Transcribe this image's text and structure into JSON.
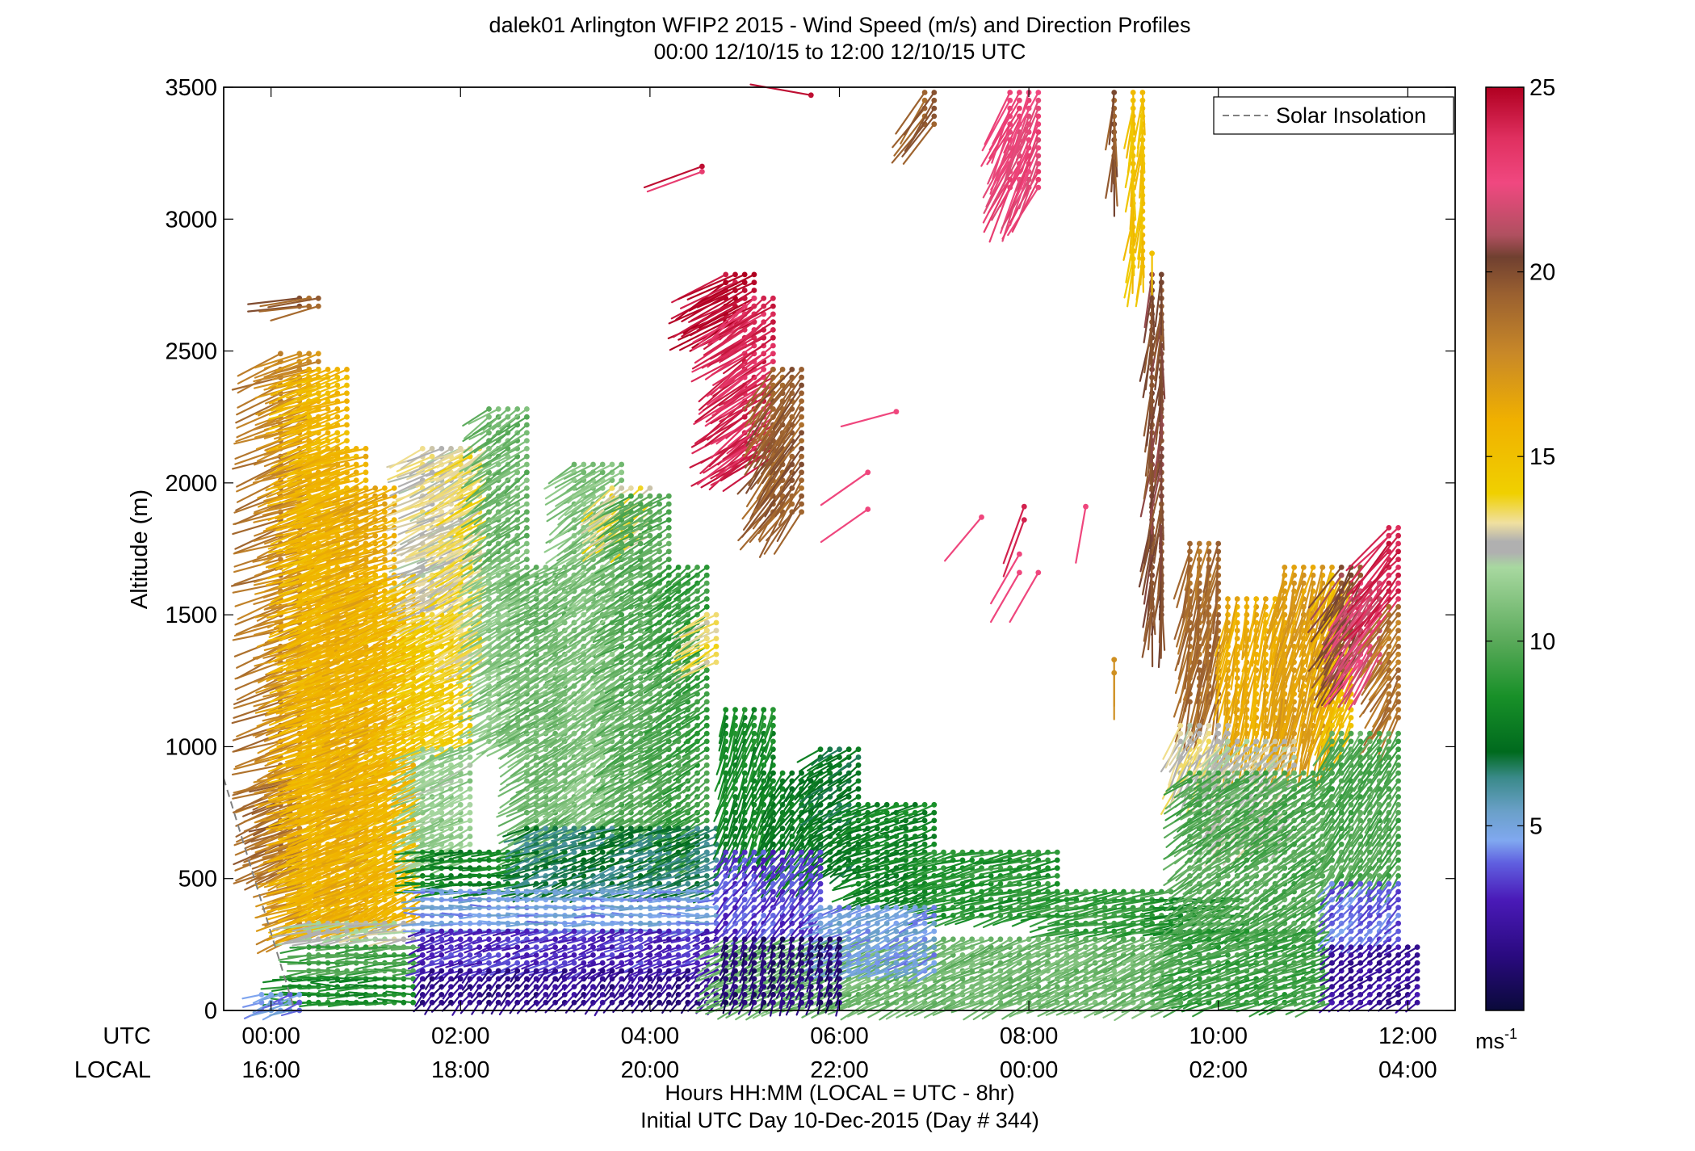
{
  "chart_data": {
    "type": "scatter",
    "subtype": "wind-barb-profile",
    "title_line1": "dalek01 Arlington WFIP2 2015 - Wind Speed (m/s) and Direction Profiles",
    "title_line2": "00:00 12/10/15 to 12:00 12/10/15  UTC",
    "ylabel": "Altitude (m)",
    "xlabel_line1": "Hours HH:MM  (LOCAL = UTC - 8hr)",
    "xlabel_line2": "Initial UTC Day 10-Dec-2015 (Day # 344)",
    "xrow_label_utc": "UTC",
    "xrow_label_local": "LOCAL",
    "x_ticks_utc": [
      "00:00",
      "02:00",
      "04:00",
      "06:00",
      "08:00",
      "10:00",
      "12:00"
    ],
    "x_ticks_local": [
      "16:00",
      "18:00",
      "20:00",
      "22:00",
      "00:00",
      "02:00",
      "04:00"
    ],
    "x_tick_hours": [
      0,
      2,
      4,
      6,
      8,
      10,
      12
    ],
    "xlim": [
      -0.5,
      12.5
    ],
    "y_ticks": [
      "0",
      "500",
      "1000",
      "1500",
      "2000",
      "2500",
      "3000",
      "3500"
    ],
    "y_tick_values": [
      0,
      500,
      1000,
      1500,
      2000,
      2500,
      3000,
      3500
    ],
    "ylim": [
      0,
      3500
    ],
    "legend": {
      "label": "Solar Insolation",
      "position": "top-right",
      "style": "dashed",
      "color": "#808080"
    },
    "solar_insolation": {
      "x": [
        -0.5,
        0.25
      ],
      "y": [
        880,
        0
      ]
    },
    "colorbar": {
      "range": [
        0,
        25
      ],
      "ticks": [
        "5",
        "10",
        "15",
        "20",
        "25"
      ],
      "tick_values": [
        5,
        10,
        15,
        20,
        25
      ],
      "unit_label": "ms",
      "unit_exponent": "-1",
      "stops": [
        {
          "v": 0,
          "c": "#0a0a3a"
        },
        {
          "v": 1.5,
          "c": "#2a0a80"
        },
        {
          "v": 3,
          "c": "#4a1ab8"
        },
        {
          "v": 4,
          "c": "#6060e0"
        },
        {
          "v": 4.6,
          "c": "#80a8f0"
        },
        {
          "v": 5.4,
          "c": "#6aa0c8"
        },
        {
          "v": 6.3,
          "c": "#3a8a8a"
        },
        {
          "v": 7,
          "c": "#006a1e"
        },
        {
          "v": 8.5,
          "c": "#189028"
        },
        {
          "v": 10,
          "c": "#5aaa5a"
        },
        {
          "v": 12,
          "c": "#a8d8a0"
        },
        {
          "v": 12.4,
          "c": "#b0b0b0"
        },
        {
          "v": 12.7,
          "c": "#b0b0b0"
        },
        {
          "v": 13.2,
          "c": "#f0e0a0"
        },
        {
          "v": 14,
          "c": "#f0d000"
        },
        {
          "v": 16,
          "c": "#f0b000"
        },
        {
          "v": 17.8,
          "c": "#c88828"
        },
        {
          "v": 19.4,
          "c": "#9a6030"
        },
        {
          "v": 20.4,
          "c": "#704030"
        },
        {
          "v": 21,
          "c": "#b05060"
        },
        {
          "v": 22.4,
          "c": "#f04880"
        },
        {
          "v": 23.6,
          "c": "#e03060"
        },
        {
          "v": 25,
          "c": "#b00020"
        }
      ]
    },
    "barb_groups": [
      {
        "x": [
          0.05,
          0.15
        ],
        "y": [
          800,
          2500
        ],
        "s": 18.5,
        "dir": 250
      },
      {
        "x": [
          0.05,
          0.3
        ],
        "y": [
          520,
          880
        ],
        "s": 19.2,
        "dir": 250
      },
      {
        "x": [
          0.25,
          0.5
        ],
        "y": [
          300,
          2500
        ],
        "s": 17.5,
        "dir": 250
      },
      {
        "x": [
          0.4,
          0.8
        ],
        "y": [
          320,
          2450
        ],
        "s": 15.5,
        "dir": 250
      },
      {
        "x": [
          0.6,
          1.0
        ],
        "y": [
          330,
          2150
        ],
        "s": 15.8,
        "dir": 250
      },
      {
        "x": [
          0.9,
          1.3
        ],
        "y": [
          330,
          2000
        ],
        "s": 16.3,
        "dir": 250
      },
      {
        "x": [
          1.1,
          1.6
        ],
        "y": [
          360,
          1650
        ],
        "s": 15.5,
        "dir": 245
      },
      {
        "x": [
          0.3,
          0.5
        ],
        "y": [
          2650,
          2700
        ],
        "s": 19.5,
        "dir": 260
      },
      {
        "x": [
          0.4,
          1.5
        ],
        "y": [
          250,
          330
        ],
        "s": 12.4,
        "dir": 260
      },
      {
        "x": [
          0.4,
          1.6
        ],
        "y": [
          130,
          240
        ],
        "s": 9.5,
        "dir": 265
      },
      {
        "x": [
          0.2,
          1.5
        ],
        "y": [
          5,
          130
        ],
        "s": 8.5,
        "dir": 270
      },
      {
        "x": [
          -0.1,
          0.3
        ],
        "y": [
          0,
          70
        ],
        "s": 4.5,
        "dir": 250
      },
      {
        "x": [
          1.6,
          2.1
        ],
        "y": [
          1500,
          2150
        ],
        "s": 12.8,
        "dir": 245
      },
      {
        "x": [
          1.6,
          2.1
        ],
        "y": [
          1000,
          1500
        ],
        "s": 14.3,
        "dir": 245
      },
      {
        "x": [
          1.6,
          2.1
        ],
        "y": [
          550,
          1000
        ],
        "s": 11.5,
        "dir": 245
      },
      {
        "x": [
          2.0,
          2.3
        ],
        "y": [
          1300,
          2150
        ],
        "s": 13.5,
        "dir": 240
      },
      {
        "x": [
          2.3,
          2.7
        ],
        "y": [
          1700,
          2300
        ],
        "s": 10.5,
        "dir": 235
      },
      {
        "x": [
          2.3,
          2.7
        ],
        "y": [
          1000,
          1700
        ],
        "s": 11.2,
        "dir": 240
      },
      {
        "x": [
          2.7,
          3.2
        ],
        "y": [
          600,
          1700
        ],
        "s": 10.5,
        "dir": 240
      },
      {
        "x": [
          3.2,
          3.7
        ],
        "y": [
          700,
          2080
        ],
        "s": 11.0,
        "dir": 235
      },
      {
        "x": [
          3.6,
          4.0
        ],
        "y": [
          1800,
          1980
        ],
        "s": 13.5,
        "dir": 235
      },
      {
        "x": [
          3.7,
          4.2
        ],
        "y": [
          650,
          1950
        ],
        "s": 10.0,
        "dir": 240
      },
      {
        "x": [
          4.2,
          4.6
        ],
        "y": [
          550,
          1700
        ],
        "s": 9.3,
        "dir": 235
      },
      {
        "x": [
          4.55,
          4.75
        ],
        "y": [
          1300,
          1520
        ],
        "s": 13.5,
        "dir": 240
      },
      {
        "x": [
          1.6,
          2.7
        ],
        "y": [
          430,
          600
        ],
        "s": 8.0,
        "dir": 265
      },
      {
        "x": [
          2.7,
          4.7
        ],
        "y": [
          450,
          700
        ],
        "s": 6.6,
        "dir": 250
      },
      {
        "x": [
          1.6,
          4.7
        ],
        "y": [
          300,
          460
        ],
        "s": 4.8,
        "dir": 270
      },
      {
        "x": [
          1.6,
          4.7
        ],
        "y": [
          150,
          320
        ],
        "s": 3.2,
        "dir": 250
      },
      {
        "x": [
          1.6,
          4.7
        ],
        "y": [
          5,
          150
        ],
        "s": 1.8,
        "dir": 220
      },
      {
        "x": [
          4.8,
          5.1
        ],
        "y": [
          2600,
          2800
        ],
        "s": 24.6,
        "dir": 240
      },
      {
        "x": [
          5.0,
          5.3
        ],
        "y": [
          2100,
          2700
        ],
        "s": 23.8,
        "dir": 235
      },
      {
        "x": [
          5.3,
          5.6
        ],
        "y": [
          1880,
          2450
        ],
        "s": 19.4,
        "dir": 215
      },
      {
        "x": [
          4.75,
          5.3
        ],
        "y": [
          600,
          1150
        ],
        "s": 8.2,
        "dir": 200
      },
      {
        "x": [
          5.3,
          5.8
        ],
        "y": [
          500,
          920
        ],
        "s": 7.6,
        "dir": 215
      },
      {
        "x": [
          5.8,
          6.2
        ],
        "y": [
          540,
          1000
        ],
        "s": 7.2,
        "dir": 235
      },
      {
        "x": [
          6.2,
          7.0
        ],
        "y": [
          420,
          800
        ],
        "s": 8.0,
        "dir": 250
      },
      {
        "x": [
          7.0,
          8.3
        ],
        "y": [
          350,
          620
        ],
        "s": 8.8,
        "dir": 255
      },
      {
        "x": [
          8.3,
          9.5
        ],
        "y": [
          280,
          450
        ],
        "s": 9.2,
        "dir": 260
      },
      {
        "x": [
          9.5,
          10.3
        ],
        "y": [
          290,
          440
        ],
        "s": 8.3,
        "dir": 265
      },
      {
        "x": [
          4.75,
          9.6
        ],
        "y": [
          10,
          280
        ],
        "s": 10.5,
        "dir": 245
      },
      {
        "x": [
          4.75,
          5.8
        ],
        "y": [
          280,
          600
        ],
        "s": 3.5,
        "dir": 220
      },
      {
        "x": [
          5.8,
          7.0
        ],
        "y": [
          150,
          400
        ],
        "s": 4.8,
        "dir": 245
      },
      {
        "x": [
          4.75,
          6.0
        ],
        "y": [
          10,
          290
        ],
        "s": 1.2,
        "dir": 200
      },
      {
        "x": [
          9.7,
          10.05
        ],
        "y": [
          1150,
          1770
        ],
        "s": 18.8,
        "dir": 190
      },
      {
        "x": [
          10.05,
          10.7
        ],
        "y": [
          1000,
          1560
        ],
        "s": 16.2,
        "dir": 190
      },
      {
        "x": [
          10.7,
          11.2
        ],
        "y": [
          1000,
          1680
        ],
        "s": 16.8,
        "dir": 195
      },
      {
        "x": [
          9.6,
          10.1
        ],
        "y": [
          870,
          1100
        ],
        "s": 12.9,
        "dir": 205
      },
      {
        "x": [
          10.0,
          10.8
        ],
        "y": [
          650,
          1020
        ],
        "s": 12.5,
        "dir": 225
      },
      {
        "x": [
          9.7,
          11.2
        ],
        "y": [
          280,
          900
        ],
        "s": 9.8,
        "dir": 235
      },
      {
        "x": [
          9.6,
          11.2
        ],
        "y": [
          10,
          300
        ],
        "s": 9.3,
        "dir": 250
      },
      {
        "x": [
          11.2,
          11.45
        ],
        "y": [
          1050,
          1660
        ],
        "s": 15.2,
        "dir": 205
      },
      {
        "x": [
          11.3,
          11.55
        ],
        "y": [
          1300,
          1700
        ],
        "s": 20.2,
        "dir": 210
      },
      {
        "x": [
          11.5,
          11.75
        ],
        "y": [
          1300,
          1620
        ],
        "s": 22.0,
        "dir": 215
      },
      {
        "x": [
          11.75,
          11.95
        ],
        "y": [
          1550,
          1850
        ],
        "s": 24.0,
        "dir": 220
      },
      {
        "x": [
          11.75,
          11.95
        ],
        "y": [
          1100,
          1550
        ],
        "s": 18.5,
        "dir": 210
      },
      {
        "x": [
          11.2,
          11.95
        ],
        "y": [
          500,
          1050
        ],
        "s": 9.8,
        "dir": 215
      },
      {
        "x": [
          11.2,
          11.95
        ],
        "y": [
          250,
          500
        ],
        "s": 4.0,
        "dir": 225
      },
      {
        "x": [
          11.2,
          12.1
        ],
        "y": [
          20,
          250
        ],
        "s": 2.2,
        "dir": 235
      },
      {
        "x": [
          9.1,
          9.2
        ],
        "y": [
          2800,
          3500
        ],
        "s": 15.0,
        "dir": 185
      },
      {
        "x": [
          8.85,
          8.95
        ],
        "y": [
          3200,
          3500
        ],
        "s": 19.8,
        "dir": 185
      },
      {
        "x": [
          9.25,
          9.45
        ],
        "y": [
          1500,
          2800
        ],
        "s": 20.1,
        "dir": 185
      },
      {
        "x": [
          7.75,
          8.15
        ],
        "y": [
          3100,
          3500
        ],
        "s": 22.5,
        "dir": 205
      },
      {
        "x": [
          6.9,
          7.05
        ],
        "y": [
          3350,
          3500
        ],
        "s": 19.5,
        "dir": 215
      }
    ],
    "isolated_barbs": [
      {
        "x": 4.55,
        "y": 3200,
        "s": 24.6,
        "dir": 250
      },
      {
        "x": 4.55,
        "y": 3180,
        "s": 23.0,
        "dir": 250
      },
      {
        "x": 5.7,
        "y": 3470,
        "s": 24.6,
        "dir": 280
      },
      {
        "x": 6.6,
        "y": 2270,
        "s": 22.5,
        "dir": 255
      },
      {
        "x": 6.3,
        "y": 2040,
        "s": 22.5,
        "dir": 235
      },
      {
        "x": 6.3,
        "y": 1900,
        "s": 22.5,
        "dir": 235
      },
      {
        "x": 7.5,
        "y": 1870,
        "s": 22.5,
        "dir": 220
      },
      {
        "x": 7.95,
        "y": 1910,
        "s": 24.0,
        "dir": 200
      },
      {
        "x": 7.95,
        "y": 1860,
        "s": 24.0,
        "dir": 200
      },
      {
        "x": 7.9,
        "y": 1730,
        "s": 22.5,
        "dir": 210
      },
      {
        "x": 7.9,
        "y": 1660,
        "s": 22.5,
        "dir": 210
      },
      {
        "x": 8.1,
        "y": 1660,
        "s": 22.5,
        "dir": 210
      },
      {
        "x": 8.6,
        "y": 1910,
        "s": 22.5,
        "dir": 190
      },
      {
        "x": 8.9,
        "y": 1330,
        "s": 17.5,
        "dir": 180
      },
      {
        "x": 8.9,
        "y": 1280,
        "s": 17.5,
        "dir": 180
      },
      {
        "x": 9.3,
        "y": 2870,
        "s": 15.0,
        "dir": 180
      }
    ]
  }
}
